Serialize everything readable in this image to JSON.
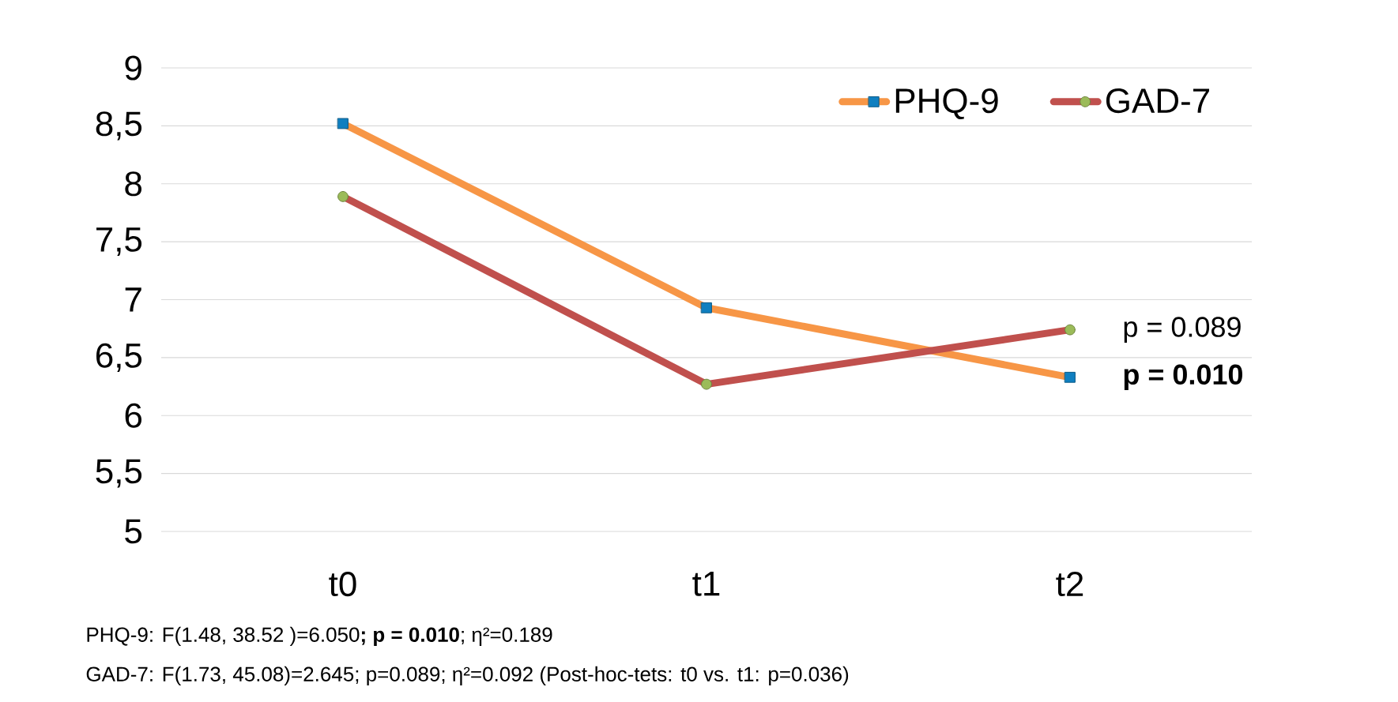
{
  "chart_data": {
    "type": "line",
    "categories": [
      "t0",
      "t1",
      "t2"
    ],
    "series": [
      {
        "name": "PHQ-9",
        "color": "#f79646",
        "marker": "square",
        "values": [
          8.52,
          6.93,
          6.33
        ]
      },
      {
        "name": "GAD-7",
        "color": "#c0504d",
        "marker": "circle",
        "values": [
          7.89,
          6.27,
          6.74
        ]
      }
    ],
    "ylim": [
      5,
      9
    ],
    "yticks": [
      5,
      {
        "value": 5.5,
        "label": "5,5"
      },
      6,
      {
        "value": 6.5,
        "label": "6,5"
      },
      7,
      {
        "value": 7.5,
        "label": "7,5"
      },
      8,
      {
        "value": 8.5,
        "label": "8,5"
      },
      9
    ],
    "grid": "y",
    "legend": "top right",
    "annotations": [
      {
        "text": "p = 0.089",
        "x": "t2",
        "y": 6.74
      },
      {
        "text": "**p = 0.010**",
        "x": "t2",
        "y": 6.33
      },
      "PHQ-9: F(1.48, 38.52 )=6.050**; p = 0.010**; η²=0.189",
      "GAD-7: F(1.73, 45.08)=2.645; p=0.089; η²=0.092 (Post-hoc-tets: t0 vs. t1: p=0.036)"
    ]
  }
}
